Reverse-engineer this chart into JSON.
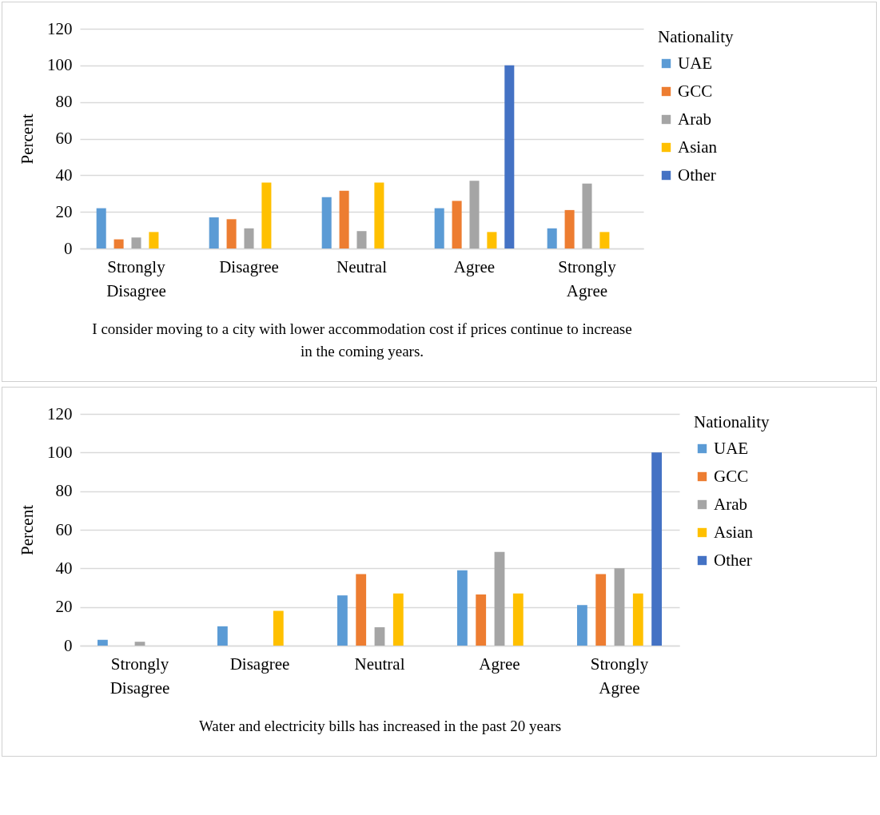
{
  "chart_data": [
    {
      "type": "bar",
      "categories": [
        "Strongly Disagree",
        "Disagree",
        "Neutral",
        "Agree",
        "Strongly Agree"
      ],
      "ylabel": "Percent",
      "xlabel": "I consider moving to a city with lower accommodation cost if prices continue to increase in the coming years.",
      "legend_title": "Nationality",
      "legend": "right",
      "grid": "y",
      "ylim": [
        0,
        120
      ],
      "yticks": [
        0,
        20,
        40,
        60,
        80,
        100,
        120
      ],
      "series": [
        {
          "name": "UAE",
          "color": "#5b9bd5",
          "values": [
            22,
            17,
            28,
            22,
            11
          ]
        },
        {
          "name": "GCC",
          "color": "#ed7d31",
          "values": [
            5,
            16,
            31.5,
            26,
            21
          ]
        },
        {
          "name": "Arab",
          "color": "#a5a5a5",
          "values": [
            6,
            11,
            9.5,
            37,
            35.5
          ]
        },
        {
          "name": "Asian",
          "color": "#ffc000",
          "values": [
            9,
            36,
            36,
            9,
            9
          ]
        },
        {
          "name": "Other",
          "color": "#4472c4",
          "values": [
            0,
            0,
            0,
            100,
            0
          ]
        }
      ]
    },
    {
      "type": "bar",
      "categories": [
        "Strongly Disagree",
        "Disagree",
        "Neutral",
        "Agree",
        "Strongly Agree"
      ],
      "ylabel": "Percent",
      "xlabel": "Water and electricity bills has increased in the past 20 years",
      "legend_title": "Nationality",
      "legend": "right",
      "grid": "y",
      "ylim": [
        0,
        120
      ],
      "yticks": [
        0,
        20,
        40,
        60,
        80,
        100,
        120
      ],
      "series": [
        {
          "name": "UAE",
          "color": "#5b9bd5",
          "values": [
            3,
            10,
            26,
            39,
            21
          ]
        },
        {
          "name": "GCC",
          "color": "#ed7d31",
          "values": [
            0,
            0,
            37,
            26.5,
            37
          ]
        },
        {
          "name": "Arab",
          "color": "#a5a5a5",
          "values": [
            2,
            0,
            9.5,
            48.5,
            40
          ]
        },
        {
          "name": "Asian",
          "color": "#ffc000",
          "values": [
            0,
            18,
            27,
            27,
            27
          ]
        },
        {
          "name": "Other",
          "color": "#4472c4",
          "values": [
            0,
            0,
            0,
            0,
            100
          ]
        }
      ]
    }
  ]
}
